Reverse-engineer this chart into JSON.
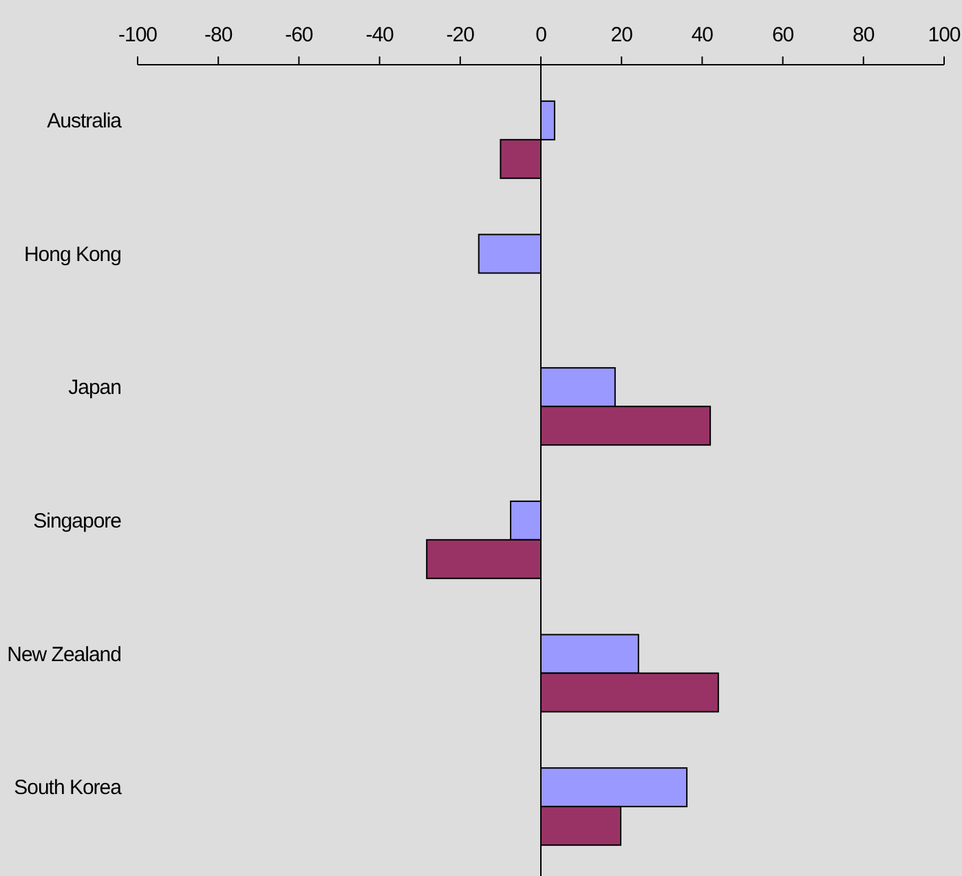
{
  "chart_data": {
    "type": "bar",
    "orientation": "horizontal",
    "categories": [
      "Australia",
      "Hong Kong",
      "Japan",
      "Singapore",
      "New Zealand",
      "South Korea"
    ],
    "series": [
      {
        "color": "#9999ff",
        "values": [
          3.4,
          -15.4,
          18.4,
          -7.5,
          24.2,
          36.2
        ]
      },
      {
        "color": "#993366",
        "values": [
          -10,
          null,
          42,
          -28.3,
          44,
          19.8
        ]
      }
    ],
    "xlim": [
      -100,
      100
    ],
    "xticks": [
      -100,
      -80,
      -60,
      -40,
      -20,
      0,
      20,
      40,
      60,
      80,
      100
    ]
  }
}
